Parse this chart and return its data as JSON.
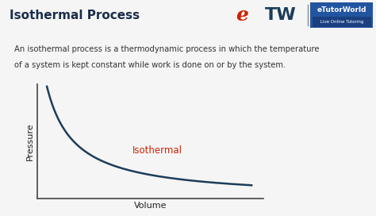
{
  "title": "Isothermal Process",
  "title_fontsize": 11,
  "title_color": "#1a2e4a",
  "title_bg_color": "#b8d8ea",
  "description_line1": "An isothermal process is a thermodynamic process in which the temperature",
  "description_line2": "of a system is kept constant while work is done on or by the system.",
  "description_bg_color": "#f2cfc9",
  "description_border_color": "#d9a09a",
  "description_fontsize": 7.2,
  "curve_color": "#1c3d5a",
  "curve_label": "Isothermal",
  "curve_label_color": "#cc2200",
  "curve_label_fontsize": 8.5,
  "xlabel": "Volume",
  "ylabel": "Pressure",
  "axis_label_fontsize": 8,
  "bg_color": "#f5f5f5",
  "logo_e_color": "#cc2200",
  "logo_tw_color": "#1c3d5a",
  "logo_divider_color": "#888888",
  "logo_text": "eTutorWorld",
  "logo_subtext": "Live Online Tutoring",
  "logo_box_color": "#2255a0",
  "spine_color": "#444444"
}
